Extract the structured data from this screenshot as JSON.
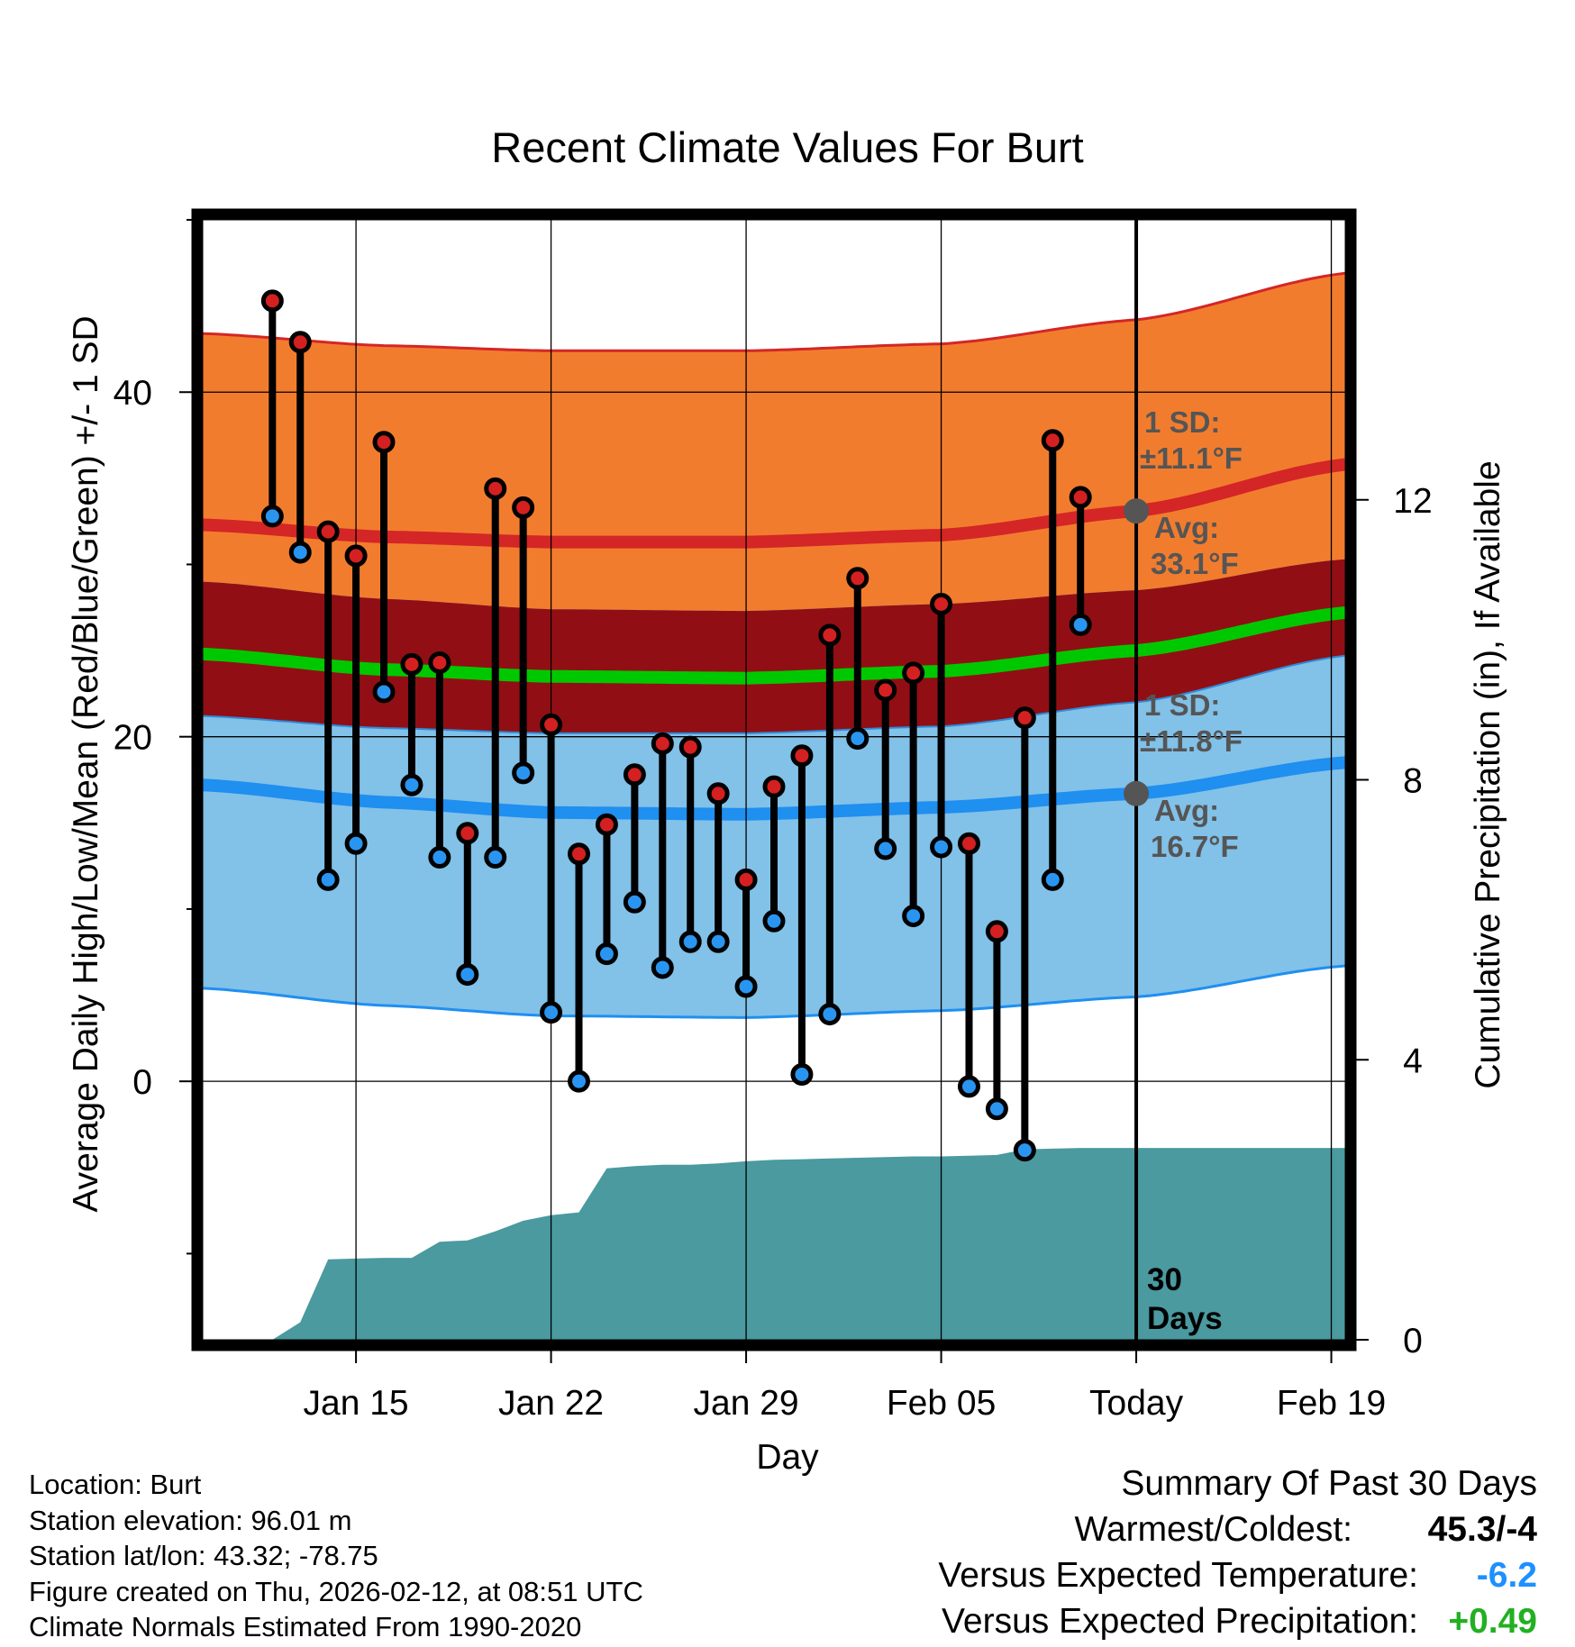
{
  "chart_data": {
    "type": "line",
    "title": "Recent Climate Values For Burt",
    "xlabel": "Day",
    "ylabel": "Average Daily High/Low/Mean (Red/Blue/Green) +/- 1 SD",
    "y2label": "Cumulative Precipitation (in), If Available",
    "ylim": [
      -15,
      50
    ],
    "y_ticks": [
      0,
      20,
      40
    ],
    "y2lim": [
      0,
      16
    ],
    "y2_ticks": [
      0,
      4,
      8,
      12
    ],
    "x_day_range": [
      -26.5,
      14.5
    ],
    "x_ticks": [
      {
        "day": -21,
        "label": "Jan 15"
      },
      {
        "day": -14,
        "label": "Jan 22"
      },
      {
        "day": -7,
        "label": "Jan 29"
      },
      {
        "day": 0,
        "label": "Feb 05"
      },
      {
        "day": 7,
        "label": "Today"
      },
      {
        "day": 14,
        "label": "Feb 19"
      }
    ],
    "today_day": 7,
    "observations": {
      "days": [
        -24,
        -23,
        -22,
        -21,
        -20,
        -19,
        -18,
        -17,
        -16,
        -15,
        -14,
        -13,
        -12,
        -11,
        -10,
        -9,
        -8,
        -7,
        -6,
        -5,
        -4,
        -3,
        -2,
        -1,
        0,
        1,
        2,
        3,
        4,
        5,
        6
      ],
      "highs": [
        45.3,
        42.9,
        31.9,
        30.5,
        37.1,
        24.2,
        24.3,
        14.4,
        34.4,
        33.3,
        20.7,
        13.2,
        14.9,
        17.8,
        19.6,
        19.4,
        16.7,
        11.7,
        17.1,
        18.9,
        25.9,
        29.2,
        22.7,
        23.7,
        27.7,
        13.8,
        8.7,
        21.1,
        37.2,
        33.9,
        null
      ],
      "lows": [
        32.8,
        30.7,
        11.7,
        13.8,
        22.6,
        17.2,
        13.0,
        6.2,
        13.0,
        17.9,
        4.0,
        0.0,
        7.4,
        10.4,
        6.6,
        8.1,
        8.1,
        5.5,
        9.3,
        0.4,
        3.9,
        19.9,
        13.5,
        9.6,
        13.6,
        -0.3,
        -1.6,
        -4.0,
        11.7,
        26.5,
        null
      ]
    },
    "normals": {
      "days": [
        -26.5,
        -20,
        -14,
        -7,
        0,
        7,
        14.5
      ],
      "high_avg": [
        32.3,
        31.6,
        31.3,
        31.3,
        31.7,
        33.1,
        35.8
      ],
      "high_sd": 11.1,
      "low_avg": [
        17.2,
        16.2,
        15.6,
        15.5,
        15.9,
        16.7,
        18.5
      ],
      "low_sd": 11.8,
      "mean_avg": [
        24.8,
        23.9,
        23.5,
        23.4,
        23.8,
        25.0,
        27.2
      ]
    },
    "today_markers": {
      "high_avg": 33.1,
      "low_avg": 16.7,
      "high_sd_label": "1 SD:",
      "high_sd_value": "±11.1°F",
      "high_avg_label": "Avg:",
      "high_avg_value": "33.1°F",
      "low_sd_label": "1 SD:",
      "low_sd_value": "±11.8°F",
      "low_avg_label": "Avg:",
      "low_avg_value": "16.7°F"
    },
    "precipitation_cumulative": {
      "days": [
        -26.5,
        -25,
        -24,
        -23,
        -22,
        -21,
        -20,
        -19,
        -18,
        -17,
        -16,
        -15,
        -14,
        -13,
        -12,
        -11,
        -10,
        -9,
        -8,
        -7,
        -6,
        -5,
        -4,
        -3,
        -2,
        -1,
        0,
        1,
        2,
        3,
        4,
        5,
        6,
        7,
        14.5
      ],
      "values": [
        0,
        0,
        0,
        0.25,
        1.15,
        1.16,
        1.17,
        1.17,
        1.4,
        1.42,
        1.55,
        1.7,
        1.78,
        1.82,
        2.45,
        2.48,
        2.5,
        2.5,
        2.52,
        2.55,
        2.57,
        2.58,
        2.59,
        2.6,
        2.61,
        2.62,
        2.62,
        2.63,
        2.64,
        2.72,
        2.73,
        2.74,
        2.74,
        2.74,
        2.74
      ]
    },
    "days_label_line1": "30",
    "days_label_line2": "Days"
  },
  "footer": {
    "location": "Location: Burt",
    "elevation": "Station elevation: 96.01 m",
    "latlon": "Station lat/lon: 43.32; -78.75",
    "created": "Figure created on Thu, 2026-02-12, at 08:51 UTC",
    "normals": "Climate Normals Estimated From 1990-2020"
  },
  "summary": {
    "title": "Summary Of Past 30 Days",
    "warmest_label": "Warmest/Coldest:",
    "warmest_value": "45.3/-4",
    "temp_label": "Versus Expected Temperature:",
    "temp_value": "-6.2",
    "precip_label": "Versus Expected Precipitation:",
    "precip_value": "+0.49"
  },
  "colors": {
    "high_band": "#f27c2e",
    "overlap_band": "#910f14",
    "low_band": "#82c1e8",
    "high_line": "#d42626",
    "low_line": "#1f8ff0",
    "mean_line": "#00c800",
    "precip": "#4a9aa0",
    "marker_label": "#555555",
    "temp_value": "#1e90ff",
    "precip_value": "#22b022"
  }
}
